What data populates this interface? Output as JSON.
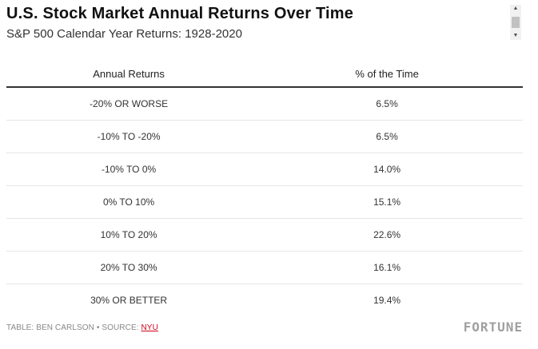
{
  "chart_data": {
    "type": "table",
    "title": "U.S. Stock Market Annual Returns Over Time",
    "subtitle": "S&P 500 Calendar Year Returns: 1928-2020",
    "columns": [
      "Annual Returns",
      "% of the Time"
    ],
    "rows": [
      {
        "range": "-20% OR WORSE",
        "percent": "6.5%"
      },
      {
        "range": "-10% TO -20%",
        "percent": "6.5%"
      },
      {
        "range": "-10% TO 0%",
        "percent": "14.0%"
      },
      {
        "range": "0% TO 10%",
        "percent": "15.1%"
      },
      {
        "range": "10% TO 20%",
        "percent": "22.6%"
      },
      {
        "range": "20% TO 30%",
        "percent": "16.1%"
      },
      {
        "range": "30% OR BETTER",
        "percent": "19.4%"
      }
    ]
  },
  "footer": {
    "credit": "TABLE: BEN CARLSON • SOURCE: ",
    "source_link": "NYU",
    "brand": "FORTUNE"
  },
  "scrollbar": {
    "up_icon": "arrow-up-icon",
    "down_icon": "arrow-down-icon"
  },
  "colors": {
    "link": "#d0021b",
    "header_rule": "#333333",
    "row_rule": "#e6e6e6"
  }
}
